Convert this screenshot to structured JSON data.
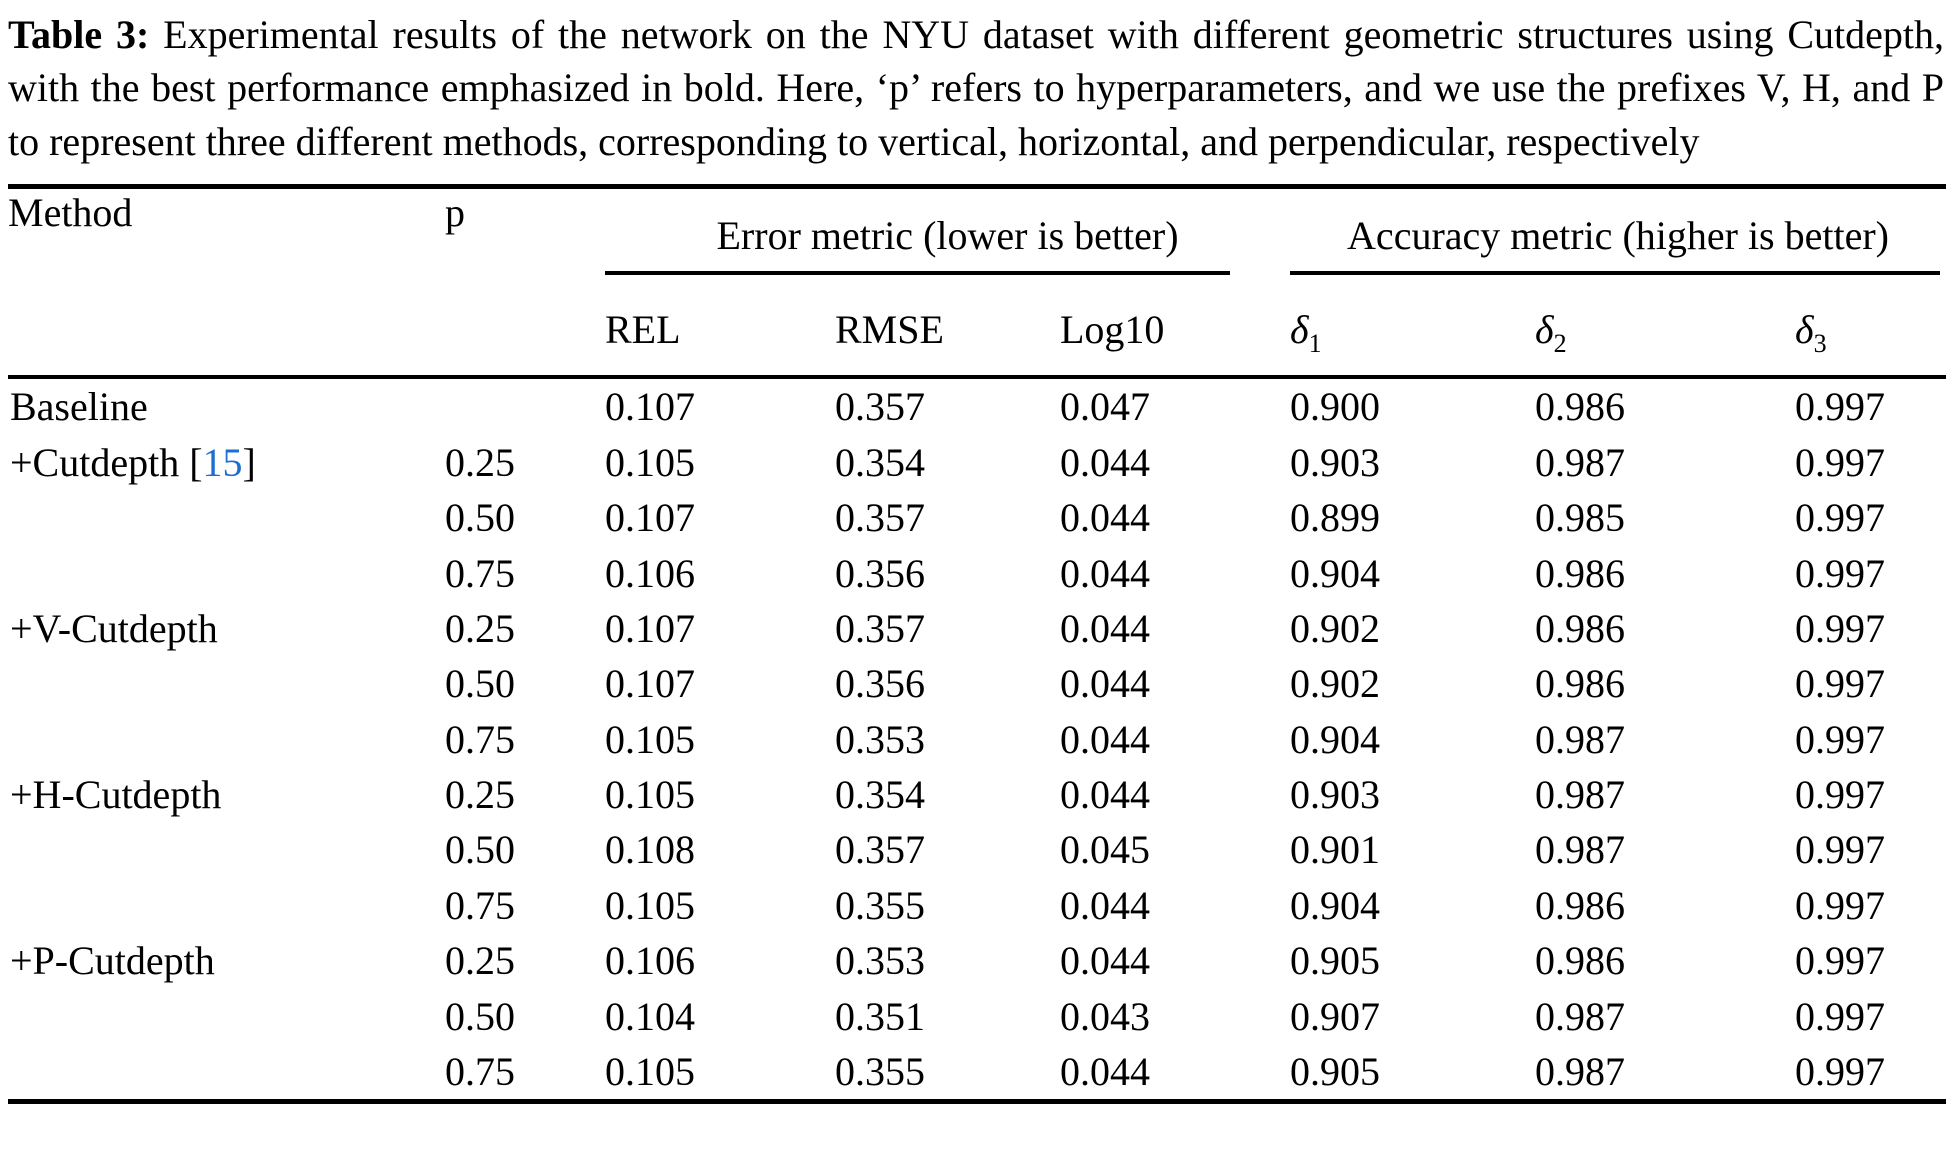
{
  "caption": {
    "label": "Table 3:",
    "text": " Experimental results of the network on the NYU dataset with different geometric structures using Cutdepth, with the best performance emphasized in bold. Here, ‘p’ refers to hyperparameters, and we use the prefixes V, H, and P to represent three different methods, corresponding to vertical, horizontal, and perpendicular, respectively"
  },
  "table": {
    "header": {
      "method": "Method",
      "p": "p",
      "groups": [
        {
          "label": "Error metric (lower is better)"
        },
        {
          "label": "Accuracy metric (higher is better)"
        }
      ],
      "error_metrics": [
        "REL",
        "RMSE",
        "Log10"
      ],
      "accuracy_metrics": [
        {
          "base": "δ",
          "sub": "1"
        },
        {
          "base": "δ",
          "sub": "2"
        },
        {
          "base": "δ",
          "sub": "3"
        }
      ]
    },
    "rows": [
      {
        "method": "Baseline",
        "citation": null,
        "cells": [
          [
            "",
            false
          ],
          [
            "0.107",
            false
          ],
          [
            "0.357",
            false
          ],
          [
            "0.047",
            false
          ],
          [
            "0.900",
            false
          ],
          [
            "0.986",
            false
          ],
          [
            "0.997",
            true
          ]
        ]
      },
      {
        "method": "+Cutdepth",
        "citation": "15",
        "cells": [
          [
            "0.25",
            false
          ],
          [
            "0.105",
            false
          ],
          [
            "0.354",
            false
          ],
          [
            "0.044",
            false
          ],
          [
            "0.903",
            false
          ],
          [
            "0.987",
            true
          ],
          [
            "0.997",
            true
          ]
        ]
      },
      {
        "method": "",
        "citation": null,
        "cells": [
          [
            "0.50",
            false
          ],
          [
            "0.107",
            false
          ],
          [
            "0.357",
            false
          ],
          [
            "0.044",
            false
          ],
          [
            "0.899",
            false
          ],
          [
            "0.985",
            false
          ],
          [
            "0.997",
            true
          ]
        ]
      },
      {
        "method": "",
        "citation": null,
        "cells": [
          [
            "0.75",
            false
          ],
          [
            "0.106",
            false
          ],
          [
            "0.356",
            false
          ],
          [
            "0.044",
            false
          ],
          [
            "0.904",
            false
          ],
          [
            "0.986",
            false
          ],
          [
            "0.997",
            true
          ]
        ]
      },
      {
        "method": "+V-Cutdepth",
        "citation": null,
        "cells": [
          [
            "0.25",
            false
          ],
          [
            "0.107",
            false
          ],
          [
            "0.357",
            false
          ],
          [
            "0.044",
            false
          ],
          [
            "0.902",
            false
          ],
          [
            "0.986",
            false
          ],
          [
            "0.997",
            true
          ]
        ]
      },
      {
        "method": "",
        "citation": null,
        "cells": [
          [
            "0.50",
            false
          ],
          [
            "0.107",
            false
          ],
          [
            "0.356",
            false
          ],
          [
            "0.044",
            false
          ],
          [
            "0.902",
            false
          ],
          [
            "0.986",
            false
          ],
          [
            "0.997",
            true
          ]
        ]
      },
      {
        "method": "",
        "citation": null,
        "cells": [
          [
            "0.75",
            false
          ],
          [
            "0.105",
            false
          ],
          [
            "0.353",
            false
          ],
          [
            "0.044",
            false
          ],
          [
            "0.904",
            false
          ],
          [
            "0.987",
            true
          ],
          [
            "0.997",
            true
          ]
        ]
      },
      {
        "method": "+H-Cutdepth",
        "citation": null,
        "cells": [
          [
            "0.25",
            false
          ],
          [
            "0.105",
            false
          ],
          [
            "0.354",
            false
          ],
          [
            "0.044",
            false
          ],
          [
            "0.903",
            false
          ],
          [
            "0.987",
            true
          ],
          [
            "0.997",
            true
          ]
        ]
      },
      {
        "method": "",
        "citation": null,
        "cells": [
          [
            "0.50",
            false
          ],
          [
            "0.108",
            false
          ],
          [
            "0.357",
            false
          ],
          [
            "0.045",
            false
          ],
          [
            "0.901",
            false
          ],
          [
            "0.987",
            true
          ],
          [
            "0.997",
            true
          ]
        ]
      },
      {
        "method": "",
        "citation": null,
        "cells": [
          [
            "0.75",
            false
          ],
          [
            "0.105",
            false
          ],
          [
            "0.355",
            false
          ],
          [
            "0.044",
            false
          ],
          [
            "0.904",
            false
          ],
          [
            "0.986",
            false
          ],
          [
            "0.997",
            true
          ]
        ]
      },
      {
        "method": "+P-Cutdepth",
        "citation": null,
        "cells": [
          [
            "0.25",
            false
          ],
          [
            "0.106",
            false
          ],
          [
            "0.353",
            false
          ],
          [
            "0.044",
            false
          ],
          [
            "0.905",
            false
          ],
          [
            "0.986",
            false
          ],
          [
            "0.997",
            true
          ]
        ]
      },
      {
        "method": "",
        "citation": null,
        "cells": [
          [
            "0.50",
            false
          ],
          [
            "0.104",
            true
          ],
          [
            "0.351",
            true
          ],
          [
            "0.043",
            true
          ],
          [
            "0.907",
            true
          ],
          [
            "0.987",
            true
          ],
          [
            "0.997",
            true
          ]
        ]
      },
      {
        "method": "",
        "citation": null,
        "cells": [
          [
            "0.75",
            false
          ],
          [
            "0.105",
            false
          ],
          [
            "0.355",
            false
          ],
          [
            "0.044",
            false
          ],
          [
            "0.905",
            false
          ],
          [
            "0.987",
            true
          ],
          [
            "0.997",
            true
          ]
        ]
      }
    ]
  },
  "colors": {
    "text": "#000000",
    "background": "#ffffff",
    "citation_blue": "#1a6fd0"
  }
}
